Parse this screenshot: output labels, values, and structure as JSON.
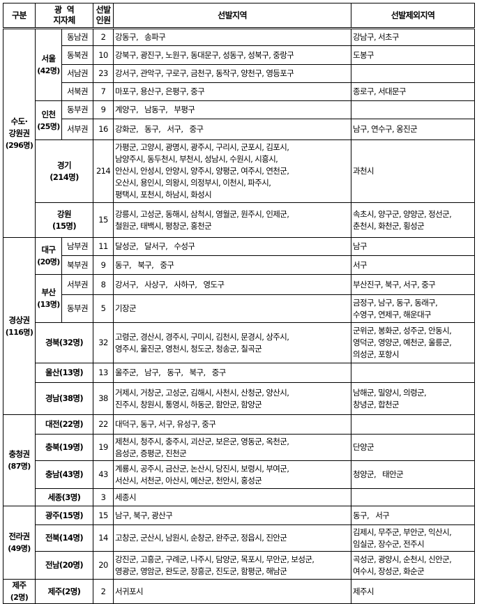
{
  "header": {
    "category": "구분",
    "metro_line1": "광  역",
    "metro_line2": "지자체",
    "count_line1": "선발",
    "count_line2": "인원",
    "selected": "선발지역",
    "excluded": "선발제외지역"
  },
  "regions": [
    {
      "name_lines": [
        "수도·",
        "강원권"
      ],
      "total": "(296명)",
      "groups": [
        {
          "name": "서울",
          "total": "(42명)",
          "subs": [
            {
              "name": "동남권",
              "count": "2",
              "selected": [
                "강동구,   송파구"
              ],
              "excluded": [
                "강남구, 서초구"
              ]
            },
            {
              "name": "동북권",
              "count": "10",
              "selected": [
                "강북구, 광진구, 노원구, 동대문구, 성동구, 성북구, 중랑구"
              ],
              "excluded": [
                "도봉구"
              ]
            },
            {
              "name": "서남권",
              "count": "23",
              "selected": [
                "강서구, 관악구, 구로구, 금천구, 동작구, 양천구, 영등포구"
              ],
              "excluded": []
            },
            {
              "name": "서북권",
              "count": "7",
              "selected": [
                "마포구, 용산구, 은평구, 중구"
              ],
              "excluded": [
                "종로구, 서대문구"
              ]
            }
          ]
        },
        {
          "name": "인천",
          "total": "(25명)",
          "subs": [
            {
              "name": "동부권",
              "count": "9",
              "selected": [
                "계양구,   남동구,   부평구"
              ],
              "excluded": []
            },
            {
              "name": "서부권",
              "count": "16",
              "selected": [
                "강화군,   동구,   서구,   중구"
              ],
              "excluded": [
                "남구, 연수구, 옹진군"
              ]
            }
          ]
        },
        {
          "name": "경기",
          "total": "(214명)",
          "count": "214",
          "selected": [
            "가평군, 고양시, 광명시, 광주시, 구리시, 군포시, 김포시,",
            "남양주시, 동두천시, 부천시, 성남시, 수원시, 시흥시,",
            "안산시, 안성시, 안양시, 양주시, 양평군, 여주시, 연천군,",
            "오산시, 용인시, 의왕시, 의정부시, 이천시, 파주시,",
            "평택시, 포천시, 하남시, 화성시"
          ],
          "excluded": [
            "과천시"
          ]
        },
        {
          "name": "강원",
          "total": "(15명)",
          "count": "15",
          "selected": [
            "강릉시, 고성군, 동해시, 삼척시, 영월군, 원주시, 인제군,",
            "철원군, 태백시, 평창군, 홍천군"
          ],
          "excluded": [
            "속초시, 양구군, 양양군, 정선군,",
            "춘천시, 화천군, 횡성군"
          ]
        }
      ]
    },
    {
      "name_lines": [
        "경상권"
      ],
      "total": "(116명)",
      "groups": [
        {
          "name": "대구",
          "total": "(20명)",
          "subs": [
            {
              "name": "남부권",
              "count": "11",
              "selected": [
                "달성군,   달서구,   수성구"
              ],
              "excluded": [
                "남구"
              ]
            },
            {
              "name": "북부권",
              "count": "9",
              "selected": [
                "동구,   북구,   중구"
              ],
              "excluded": [
                "서구"
              ]
            }
          ]
        },
        {
          "name": "부산",
          "total": "(13명)",
          "subs": [
            {
              "name": "서부권",
              "count": "8",
              "selected": [
                "강서구,   사상구,   사하구,   영도구"
              ],
              "excluded": [
                "부산진구, 북구, 서구, 중구"
              ]
            },
            {
              "name": "동부권",
              "count": "5",
              "selected": [
                "기장군"
              ],
              "excluded": [
                "금정구, 남구, 동구, 동래구,",
                "수영구, 연제구, 해운대구"
              ]
            }
          ]
        },
        {
          "name": "경북(32명)",
          "total": "",
          "count": "32",
          "selected": [
            "고령군, 경산시, 경주시, 구미시, 김천시, 문경시, 상주시,",
            "영주시, 울진군, 영천시, 청도군, 청송군, 칠곡군"
          ],
          "excluded": [
            "군위군, 봉화군, 성주군, 안동시,",
            "영덕군, 영양군, 예천군, 울릉군,",
            "의성군, 포항시"
          ]
        },
        {
          "name": "울산(13명)",
          "total": "",
          "count": "13",
          "selected": [
            "울주군,   남구,   동구,   북구,   중구"
          ],
          "excluded": []
        },
        {
          "name": "경남(38명)",
          "total": "",
          "count": "38",
          "selected": [
            "거제시, 거창군, 고성군, 김해시, 사천시, 산청군, 양산시,",
            "진주시, 창원시, 통영시, 하동군, 함안군, 함양군"
          ],
          "excluded": [
            "남해군, 밀양시, 의령군,",
            "창녕군, 합천군"
          ]
        }
      ]
    },
    {
      "name_lines": [
        "충청권"
      ],
      "total": "(87명)",
      "groups": [
        {
          "name": "대전(22명)",
          "total": "",
          "count": "22",
          "selected": [
            "대덕구, 동구, 서구, 유성구, 중구"
          ],
          "excluded": []
        },
        {
          "name": "충북(19명)",
          "total": "",
          "count": "19",
          "selected": [
            "제천시, 청주시, 충주시, 괴산군, 보은군, 영동군, 옥천군,",
            "음성군, 증평군, 진천군"
          ],
          "excluded": [
            "단양군"
          ]
        },
        {
          "name": "충남(43명)",
          "total": "",
          "count": "43",
          "selected": [
            "계룡시, 공주시, 금산군, 논산시, 당진시, 보령시, 부여군,",
            "서산시, 서천군, 아산시, 예산군, 천안시, 홍성군"
          ],
          "excluded": [
            "청양군,   태안군"
          ]
        },
        {
          "name": "세종(3명)",
          "total": "",
          "count": "3",
          "selected": [
            "세종시"
          ],
          "excluded": []
        }
      ]
    },
    {
      "name_lines": [
        "전라권"
      ],
      "total": "(49명)",
      "groups": [
        {
          "name": "광주(15명)",
          "total": "",
          "count": "15",
          "selected": [
            "남구, 북구, 광산구"
          ],
          "excluded": [
            "동구,   서구"
          ]
        },
        {
          "name": "전북(14명)",
          "total": "",
          "count": "14",
          "selected": [
            "고창군, 군산시, 남원시, 순창군, 완주군, 정읍시, 진안군"
          ],
          "excluded": [
            "김제시, 무주군, 부안군, 익산시,",
            "임실군, 장수군, 전주시"
          ]
        },
        {
          "name": "전남(20명)",
          "total": "",
          "count": "20",
          "selected": [
            "강진군, 고흥군, 구례군, 나주시, 담양군, 목포시, 무안군, 보성군,",
            "영광군, 영암군, 완도군, 장흥군, 진도군, 함평군, 해남군"
          ],
          "excluded": [
            "곡성군, 광양시, 순천시, 신안군,",
            "여수시, 장성군, 화순군"
          ]
        }
      ]
    },
    {
      "name_lines": [
        "제주"
      ],
      "total": "(2명)",
      "groups": [
        {
          "name": "제주(2명)",
          "total": "",
          "count": "2",
          "selected": [
            "서귀포시"
          ],
          "excluded": [
            "제주시"
          ]
        }
      ]
    }
  ]
}
